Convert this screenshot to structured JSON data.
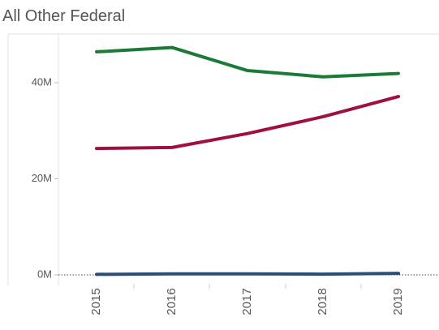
{
  "chart_data": {
    "type": "line",
    "title": "All Other Federal",
    "categories": [
      "2015",
      "2016",
      "2017",
      "2018",
      "2019"
    ],
    "series": [
      {
        "color": "#1b7a36",
        "values": [
          46400000,
          47300000,
          42500000,
          41200000,
          41900000
        ]
      },
      {
        "color": "#a0103f",
        "values": [
          26300000,
          26500000,
          29400000,
          32900000,
          37100000
        ]
      },
      {
        "color": "#2d4e74",
        "values": [
          100000,
          200000,
          200000,
          150000,
          300000
        ]
      }
    ],
    "ylim": [
      -2200000,
      50100000
    ],
    "yticks": [
      {
        "value": 0,
        "label": "0M"
      },
      {
        "value": 20000000,
        "label": "20M"
      },
      {
        "value": 40000000,
        "label": "40M"
      }
    ]
  }
}
